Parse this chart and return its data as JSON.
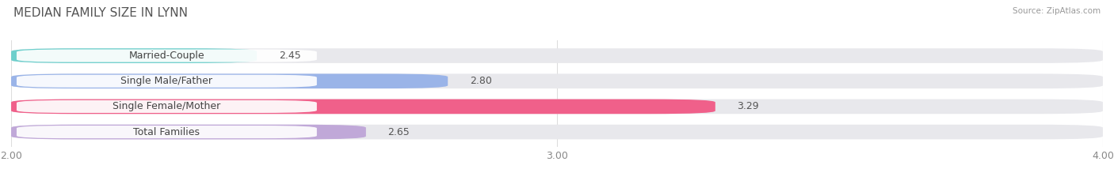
{
  "title": "MEDIAN FAMILY SIZE IN LYNN",
  "source": "Source: ZipAtlas.com",
  "categories": [
    "Married-Couple",
    "Single Male/Father",
    "Single Female/Mother",
    "Total Families"
  ],
  "values": [
    2.45,
    2.8,
    3.29,
    2.65
  ],
  "bar_colors": [
    "#6dcfcc",
    "#9ab4e8",
    "#f0608a",
    "#c0a8d8"
  ],
  "background_color": "#ffffff",
  "bar_background_color": "#e8e8ec",
  "xlim": [
    2.0,
    4.0
  ],
  "xticks": [
    2.0,
    3.0,
    4.0
  ],
  "xmin": 2.0,
  "title_fontsize": 11,
  "label_fontsize": 9,
  "value_fontsize": 9,
  "tick_fontsize": 9
}
